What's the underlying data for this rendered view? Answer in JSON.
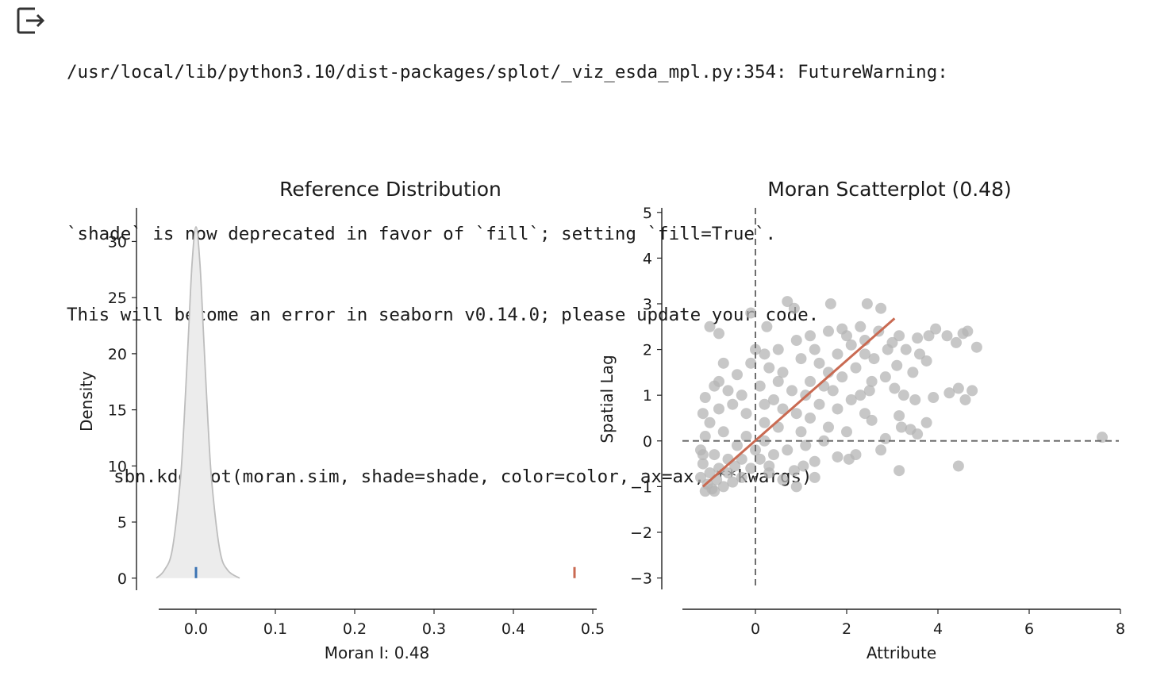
{
  "output_area": {
    "icon": "output-arrow-icon",
    "warning_lines": [
      "/usr/local/lib/python3.10/dist-packages/splot/_viz_esda_mpl.py:354: FutureWarning:",
      "",
      "`shade` is now deprecated in favor of `fill`; setting `fill=True`.",
      "This will become an error in seaborn v0.14.0; please update your code.",
      "",
      "  sbn.kdeplot(moran.sim, shade=shade, color=color, ax=ax, **kwargs)"
    ]
  },
  "chart_data": [
    {
      "type": "area",
      "title": "Reference Distribution",
      "xlabel": "Moran I: 0.48",
      "ylabel": "Density",
      "xlim": [
        -0.075,
        0.505
      ],
      "ylim": [
        -1.5,
        33
      ],
      "xticks": [
        0.0,
        0.1,
        0.2,
        0.3,
        0.4,
        0.5
      ],
      "xtick_labels": [
        "0.0",
        "0.1",
        "0.2",
        "0.3",
        "0.4",
        "0.5"
      ],
      "yticks": [
        0,
        5,
        10,
        15,
        20,
        25,
        30
      ],
      "ytick_labels": [
        "0",
        "5",
        "10",
        "15",
        "20",
        "25",
        "30"
      ],
      "grid": false,
      "kde": {
        "x": [
          -0.05,
          -0.04,
          -0.03,
          -0.02,
          -0.015,
          -0.01,
          -0.005,
          0.0,
          0.005,
          0.01,
          0.015,
          0.02,
          0.03,
          0.04,
          0.055
        ],
        "y": [
          0.0,
          0.7,
          2.5,
          8.5,
          14.0,
          21.0,
          28.0,
          31.3,
          28.0,
          21.0,
          14.0,
          8.5,
          2.5,
          0.7,
          0.0
        ],
        "fill_color": "#ececec",
        "line_color": "#bdbdbd"
      },
      "markers": [
        {
          "x": 0.0,
          "color": "#3b73b3"
        },
        {
          "x": 0.477,
          "color": "#c96a52"
        }
      ]
    },
    {
      "type": "scatter",
      "title": "Moran Scatterplot (0.48)",
      "xlabel": "Attribute",
      "ylabel": "Spatial Lag",
      "xlim": [
        -1.6,
        8.0
      ],
      "ylim": [
        -3.25,
        5.1
      ],
      "xticks": [
        0,
        2,
        4,
        6,
        8
      ],
      "xtick_labels": [
        "0",
        "2",
        "4",
        "6",
        "8"
      ],
      "yticks": [
        -3,
        -2,
        -1,
        0,
        1,
        2,
        3,
        4,
        5
      ],
      "ytick_labels": [
        "−3",
        "−2",
        "−1",
        "0",
        "1",
        "2",
        "3",
        "4",
        "5"
      ],
      "grid": false,
      "point_color": "#b4b4b4",
      "regression": {
        "x": [
          -1.15,
          3.05
        ],
        "y": [
          -1.0,
          2.68
        ],
        "color": "#c96a52"
      },
      "reference_lines": {
        "x": 0,
        "y": 0,
        "color": "#6e6e6e",
        "dash": "dashed"
      },
      "points": [
        [
          -0.1,
          2.8
        ],
        [
          -1.0,
          2.5
        ],
        [
          -0.8,
          2.35
        ],
        [
          0.25,
          2.5
        ],
        [
          0.7,
          3.05
        ],
        [
          0.85,
          2.9
        ],
        [
          1.65,
          3.0
        ],
        [
          2.45,
          3.0
        ],
        [
          2.75,
          2.9
        ],
        [
          -0.7,
          1.7
        ],
        [
          -0.8,
          1.3
        ],
        [
          -0.9,
          1.2
        ],
        [
          -1.1,
          0.95
        ],
        [
          -0.4,
          1.45
        ],
        [
          -0.1,
          1.7
        ],
        [
          0.2,
          1.9
        ],
        [
          0.5,
          2.0
        ],
        [
          0.9,
          2.2
        ],
        [
          1.2,
          2.3
        ],
        [
          1.6,
          2.4
        ],
        [
          1.9,
          2.45
        ],
        [
          2.3,
          2.5
        ],
        [
          2.7,
          2.4
        ],
        [
          3.15,
          2.3
        ],
        [
          3.55,
          2.25
        ],
        [
          3.8,
          2.3
        ],
        [
          3.95,
          2.45
        ],
        [
          4.2,
          2.3
        ],
        [
          4.4,
          2.15
        ],
        [
          4.55,
          2.35
        ],
        [
          4.65,
          2.4
        ],
        [
          4.85,
          2.05
        ],
        [
          3.0,
          2.15
        ],
        [
          3.3,
          2.0
        ],
        [
          3.6,
          1.9
        ],
        [
          3.75,
          1.75
        ],
        [
          3.45,
          1.5
        ],
        [
          3.1,
          1.65
        ],
        [
          2.85,
          1.4
        ],
        [
          2.55,
          1.3
        ],
        [
          2.3,
          1.0
        ],
        [
          3.05,
          1.15
        ],
        [
          3.25,
          1.0
        ],
        [
          3.5,
          0.9
        ],
        [
          3.9,
          0.95
        ],
        [
          4.25,
          1.05
        ],
        [
          4.45,
          1.15
        ],
        [
          4.6,
          0.9
        ],
        [
          4.75,
          1.1
        ],
        [
          2.55,
          0.45
        ],
        [
          3.15,
          0.55
        ],
        [
          3.2,
          0.3
        ],
        [
          3.4,
          0.25
        ],
        [
          3.75,
          0.4
        ],
        [
          3.55,
          0.15
        ],
        [
          2.85,
          0.05
        ],
        [
          2.75,
          -0.2
        ],
        [
          2.2,
          -0.3
        ],
        [
          2.05,
          -0.4
        ],
        [
          1.8,
          -0.35
        ],
        [
          1.3,
          -0.45
        ],
        [
          1.05,
          -0.55
        ],
        [
          0.85,
          -0.65
        ],
        [
          0.3,
          -0.7
        ],
        [
          0.6,
          -0.85
        ],
        [
          0.9,
          -1.0
        ],
        [
          1.3,
          -0.8
        ],
        [
          3.15,
          -0.65
        ],
        [
          4.45,
          -0.55
        ],
        [
          7.6,
          0.08
        ],
        [
          0.0,
          2.0
        ],
        [
          0.3,
          1.6
        ],
        [
          0.6,
          1.5
        ],
        [
          1.0,
          1.8
        ],
        [
          1.4,
          1.7
        ],
        [
          1.8,
          1.9
        ],
        [
          2.1,
          2.1
        ],
        [
          2.4,
          1.9
        ],
        [
          1.5,
          1.2
        ],
        [
          1.9,
          1.4
        ],
        [
          2.2,
          1.6
        ],
        [
          0.8,
          1.1
        ],
        [
          1.2,
          1.3
        ],
        [
          0.4,
          0.9
        ],
        [
          0.9,
          0.6
        ],
        [
          1.4,
          0.8
        ],
        [
          1.8,
          0.7
        ],
        [
          2.1,
          0.9
        ],
        [
          0.2,
          0.4
        ],
        [
          0.5,
          0.3
        ],
        [
          1.0,
          0.2
        ],
        [
          1.6,
          0.3
        ],
        [
          2.0,
          0.2
        ],
        [
          2.4,
          0.6
        ],
        [
          -0.2,
          0.6
        ],
        [
          -0.5,
          0.8
        ],
        [
          -0.8,
          0.7
        ],
        [
          -1.0,
          0.4
        ],
        [
          -1.1,
          0.1
        ],
        [
          -1.2,
          -0.2
        ],
        [
          -1.15,
          -0.5
        ],
        [
          -1.2,
          -0.8
        ],
        [
          -1.1,
          -1.1
        ],
        [
          -0.9,
          -1.1
        ],
        [
          -0.7,
          -1.0
        ],
        [
          -0.5,
          -0.9
        ],
        [
          -0.3,
          -0.8
        ],
        [
          -0.1,
          -0.6
        ],
        [
          0.1,
          -0.4
        ],
        [
          0.4,
          -0.3
        ],
        [
          0.7,
          -0.2
        ],
        [
          1.1,
          -0.1
        ],
        [
          1.5,
          0.0
        ],
        [
          -0.6,
          -0.4
        ],
        [
          -0.9,
          -0.3
        ],
        [
          -0.4,
          -0.1
        ],
        [
          -0.2,
          0.1
        ],
        [
          0.0,
          -0.2
        ],
        [
          0.2,
          0.0
        ],
        [
          -0.7,
          0.2
        ],
        [
          -1.0,
          -0.7
        ],
        [
          -0.8,
          -0.6
        ],
        [
          -0.6,
          -0.7
        ],
        [
          -0.3,
          -0.4
        ],
        [
          0.6,
          0.7
        ],
        [
          1.1,
          1.0
        ],
        [
          1.7,
          1.1
        ],
        [
          2.6,
          1.8
        ],
        [
          2.9,
          2.0
        ],
        [
          1.3,
          2.0
        ],
        [
          0.1,
          1.2
        ],
        [
          -0.3,
          1.0
        ],
        [
          -0.6,
          1.1
        ],
        [
          2.4,
          2.2
        ],
        [
          2.0,
          2.3
        ],
        [
          1.6,
          1.5
        ],
        [
          0.5,
          1.3
        ],
        [
          0.2,
          0.8
        ],
        [
          -1.15,
          0.6
        ],
        [
          -1.05,
          -0.95
        ],
        [
          -0.95,
          -1.05
        ],
        [
          -0.85,
          -0.85
        ],
        [
          -1.15,
          -0.3
        ],
        [
          -0.45,
          -0.55
        ],
        [
          0.3,
          -0.55
        ],
        [
          1.2,
          0.5
        ],
        [
          2.5,
          1.1
        ]
      ]
    }
  ]
}
